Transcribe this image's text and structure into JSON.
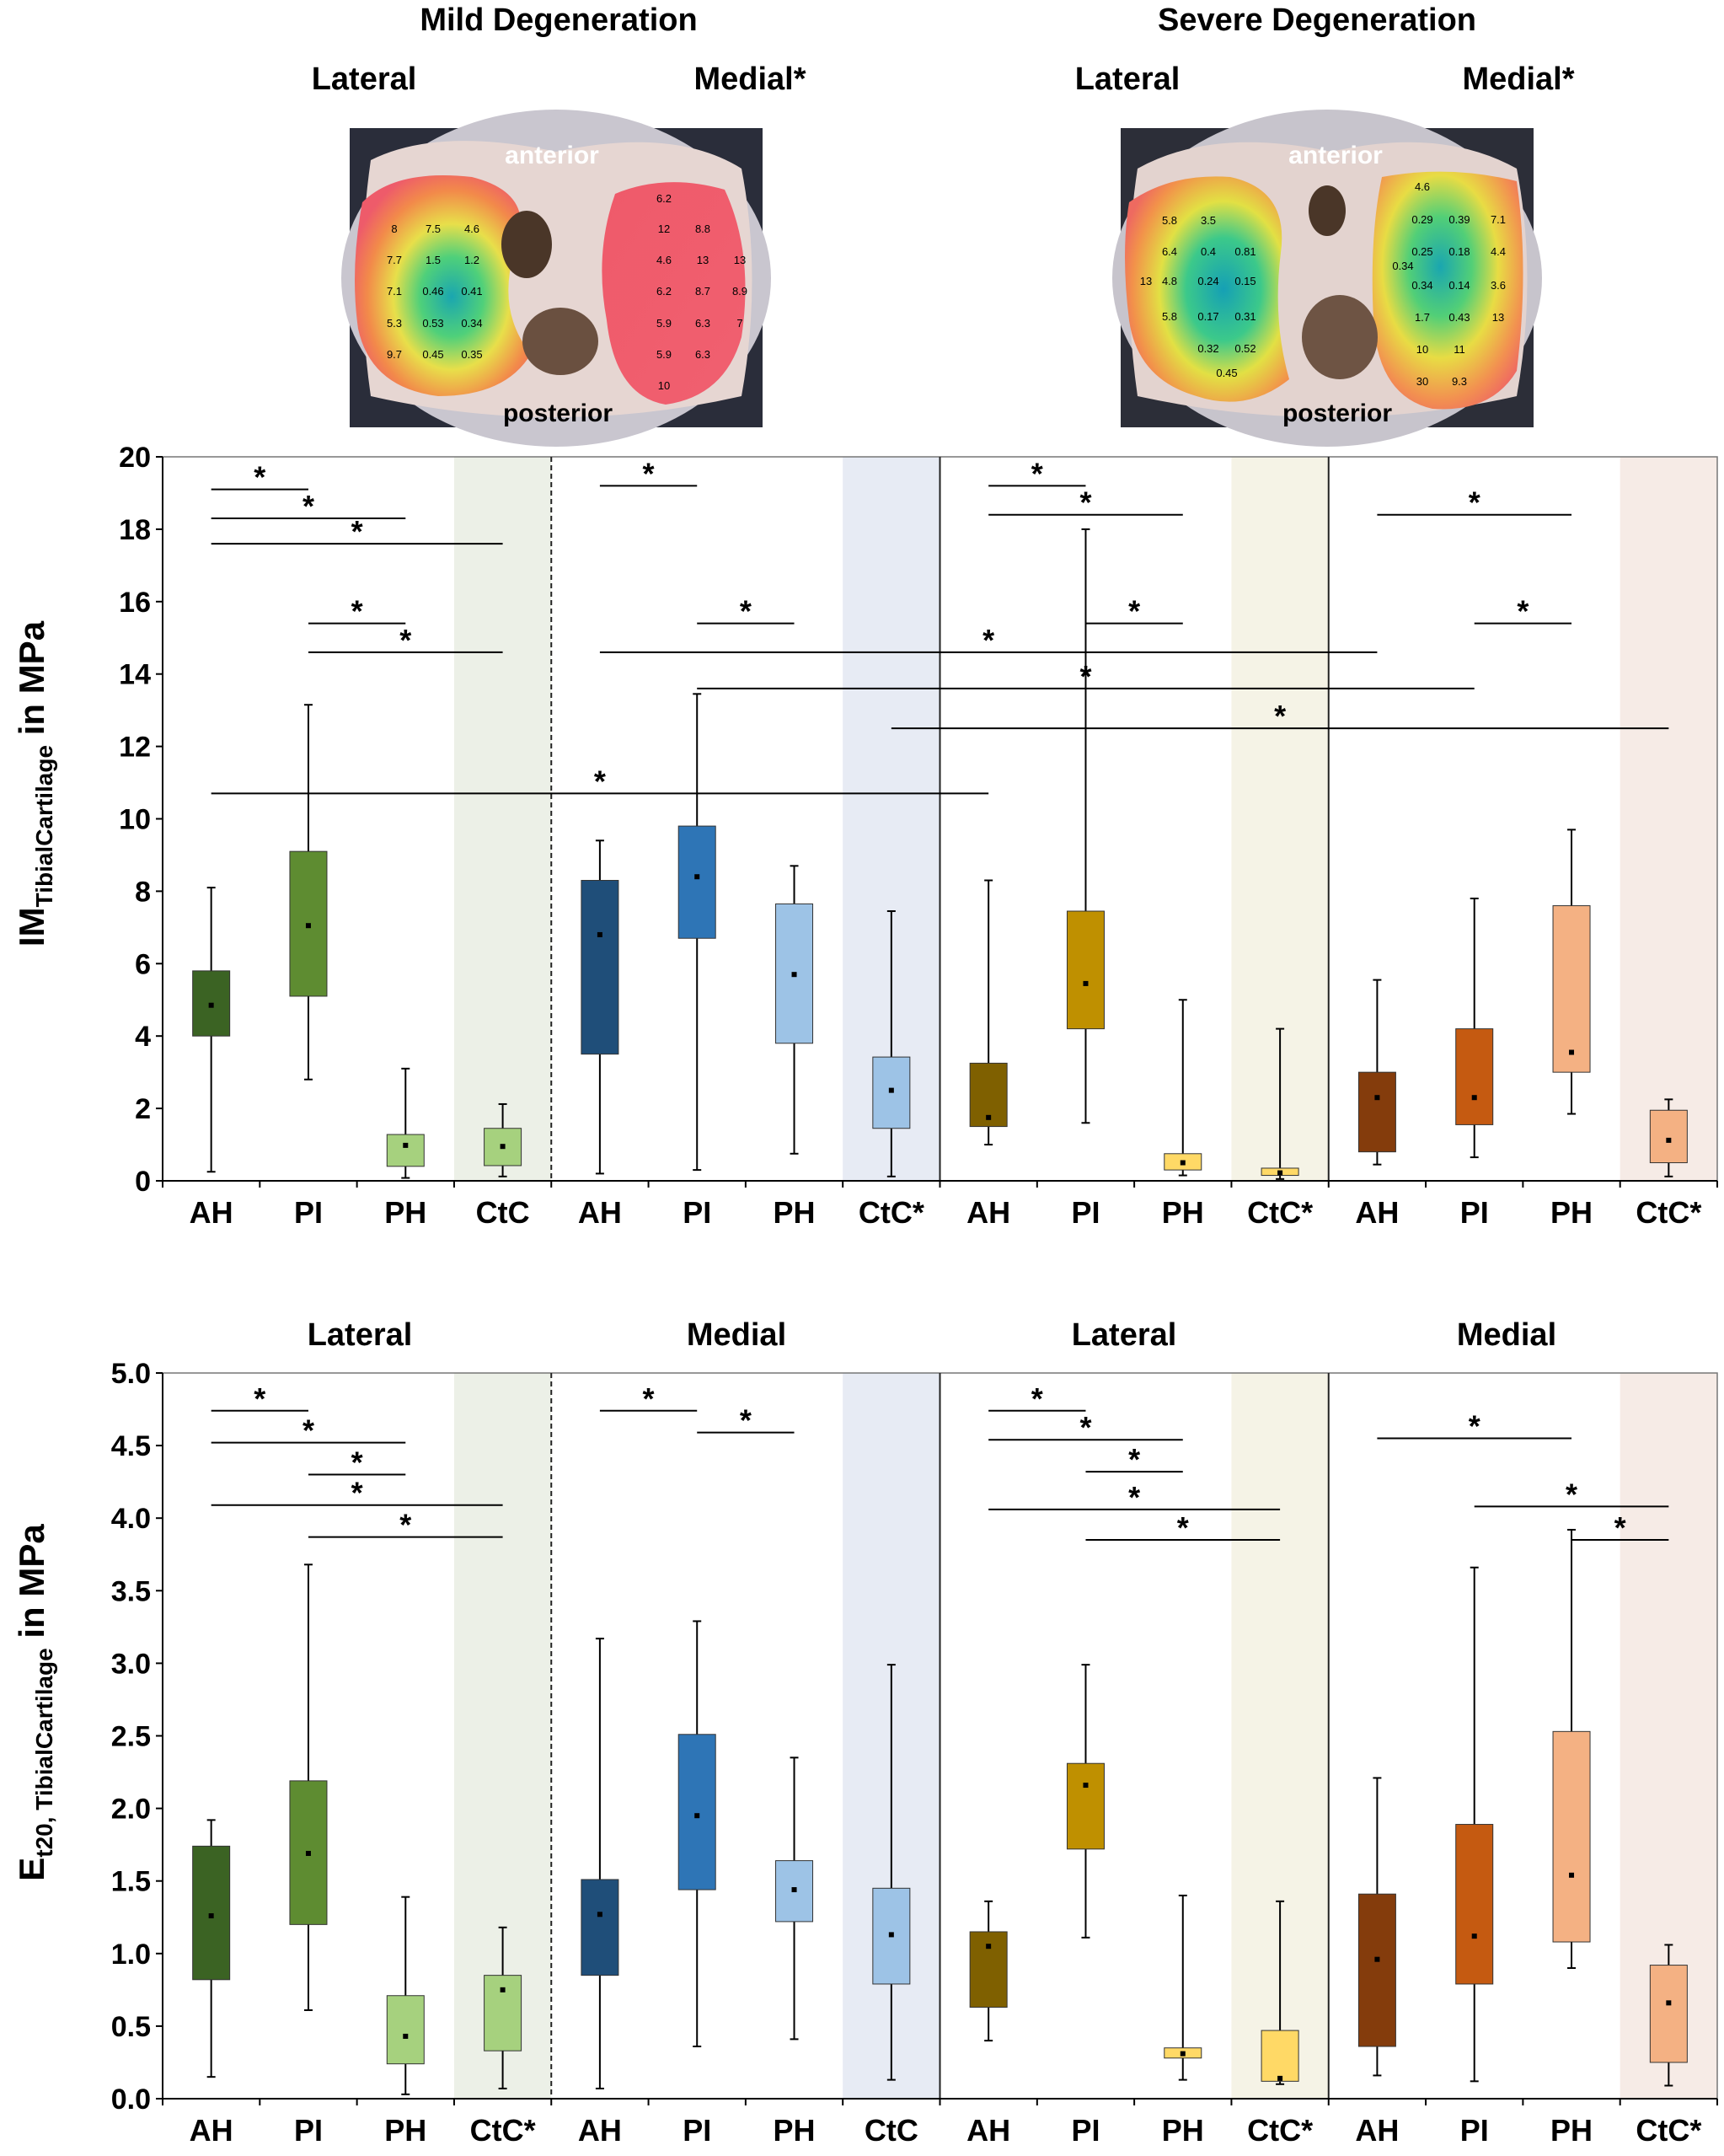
{
  "figure": {
    "headings": {
      "mild": "Mild Degeneration",
      "severe": "Severe Degeneration",
      "lateral": "Lateral",
      "medial_star": "Medial*",
      "medial": "Medial"
    },
    "photo_labels": {
      "anterior": "anterior",
      "posterior": "posterior"
    },
    "photo_mild_values": [
      "8",
      "7.5",
      "4.6",
      "7.7",
      "1.5",
      "1.2",
      "7.1",
      "0.46",
      "0.41",
      "5.3",
      "0.53",
      "0.34",
      "9.7",
      "0.45",
      "0.35",
      "6.2",
      "12",
      "8.8",
      "4.6",
      "13",
      "13",
      "6.2",
      "8.7",
      "8.9",
      "5.9",
      "6.3",
      "7",
      "5.9",
      "6.3",
      "10"
    ],
    "photo_severe_values": [
      "5.8",
      "3.5",
      "6.4",
      "0.4",
      "0.81",
      "13",
      "4.8",
      "0.24",
      "0.15",
      "5.8",
      "0.17",
      "0.31",
      "0.32",
      "0.52",
      "0.45",
      "4.6",
      "0.29",
      "0.39",
      "7.1",
      "0.25",
      "0.18",
      "4.4",
      "0.34",
      "0.34",
      "0.14",
      "3.6",
      "1.7",
      "0.43",
      "13",
      "10",
      "11",
      "30",
      "9.3"
    ],
    "colors": {
      "mild_lateral": [
        "#3b6323",
        "#5e8c31",
        "#a6d17e"
      ],
      "mild_medial": [
        "#1f4e79",
        "#2e75b6",
        "#9dc3e6"
      ],
      "severe_lateral": [
        "#7f6000",
        "#bf9000",
        "#ffd966"
      ],
      "severe_medial": [
        "#843c0c",
        "#c55a11",
        "#f4b183"
      ],
      "shade": [
        "#ecf0e7",
        "#e7ebf4",
        "#f5f3e6",
        "#f6ebe6"
      ]
    }
  },
  "chart_data": [
    {
      "type": "boxplot",
      "ylabel": "IM",
      "ylabel_sub": "TibialCartilage",
      "ylabel_unit": " in MPa",
      "ylim": [
        0,
        20
      ],
      "ytick_labels": [
        "0",
        "2",
        "4",
        "6",
        "8",
        "10",
        "12",
        "14",
        "16",
        "18",
        "20"
      ],
      "categories": [
        "AH",
        "PI",
        "PH",
        "CtC",
        "AH",
        "PI",
        "PH",
        "CtC*",
        "AH",
        "PI",
        "PH",
        "CtC*",
        "AH",
        "PI",
        "PH",
        "CtC*"
      ],
      "groups": [
        {
          "name": "Mild Degeneration Lateral",
          "start": 0,
          "end": 3
        },
        {
          "name": "Mild Degeneration Medial",
          "start": 4,
          "end": 7
        },
        {
          "name": "Severe Degeneration Lateral",
          "start": 8,
          "end": 11
        },
        {
          "name": "Severe Degeneration Medial",
          "start": 12,
          "end": 15
        }
      ],
      "boxes": [
        {
          "min": 0.25,
          "q1": 4.0,
          "median": 4.85,
          "q3": 5.8,
          "max": 8.1
        },
        {
          "min": 2.8,
          "q1": 5.1,
          "median": 7.05,
          "q3": 9.1,
          "max": 13.15
        },
        {
          "min": 0.08,
          "q1": 0.4,
          "median": 0.98,
          "q3": 1.28,
          "max": 3.1
        },
        {
          "min": 0.12,
          "q1": 0.42,
          "median": 0.95,
          "q3": 1.45,
          "max": 2.12
        },
        {
          "min": 0.2,
          "q1": 3.5,
          "median": 6.8,
          "q3": 8.3,
          "max": 9.4
        },
        {
          "min": 0.3,
          "q1": 6.7,
          "median": 8.4,
          "q3": 9.8,
          "max": 13.45
        },
        {
          "min": 0.75,
          "q1": 3.8,
          "median": 5.7,
          "q3": 7.65,
          "max": 8.7
        },
        {
          "min": 0.12,
          "q1": 1.45,
          "median": 2.5,
          "q3": 3.42,
          "max": 7.45
        },
        {
          "min": 1.0,
          "q1": 1.5,
          "median": 1.75,
          "q3": 3.25,
          "max": 8.3
        },
        {
          "min": 1.6,
          "q1": 4.2,
          "median": 5.45,
          "q3": 7.45,
          "max": 18.0
        },
        {
          "min": 0.15,
          "q1": 0.3,
          "median": 0.5,
          "q3": 0.75,
          "max": 5.0
        },
        {
          "min": 0.05,
          "q1": 0.15,
          "median": 0.22,
          "q3": 0.35,
          "max": 4.2
        },
        {
          "min": 0.45,
          "q1": 0.8,
          "median": 2.3,
          "q3": 3.0,
          "max": 5.55
        },
        {
          "min": 0.65,
          "q1": 1.55,
          "median": 2.3,
          "q3": 4.2,
          "max": 7.8
        },
        {
          "min": 1.85,
          "q1": 3.0,
          "median": 3.55,
          "q3": 7.6,
          "max": 9.7
        },
        {
          "min": 0.12,
          "q1": 0.5,
          "median": 1.12,
          "q3": 1.95,
          "max": 2.25
        }
      ],
      "significance": [
        {
          "from": 0,
          "to": 1,
          "y": 19.1
        },
        {
          "from": 0,
          "to": 2,
          "y": 18.3
        },
        {
          "from": 0,
          "to": 3,
          "y": 17.6
        },
        {
          "from": 1,
          "to": 2,
          "y": 15.4
        },
        {
          "from": 1,
          "to": 3,
          "y": 14.6
        },
        {
          "from": 4,
          "to": 5,
          "y": 19.2
        },
        {
          "from": 5,
          "to": 6,
          "y": 15.4
        },
        {
          "from": 4,
          "to": 12,
          "y": 14.6
        },
        {
          "from": 5,
          "to": 13,
          "y": 13.6
        },
        {
          "from": 7,
          "to": 15,
          "y": 12.5
        },
        {
          "from": 0,
          "to": 8,
          "y": 10.7
        },
        {
          "from": 8,
          "to": 9,
          "y": 19.2
        },
        {
          "from": 8,
          "to": 10,
          "y": 18.4
        },
        {
          "from": 9,
          "to": 10,
          "y": 15.4
        },
        {
          "from": 12,
          "to": 14,
          "y": 18.4
        },
        {
          "from": 13,
          "to": 14,
          "y": 15.4
        }
      ]
    },
    {
      "type": "boxplot",
      "ylabel": "E",
      "ylabel_sub": "t20, TibialCartilage",
      "ylabel_unit": " in MPa",
      "ylim": [
        0,
        5
      ],
      "ytick_labels": [
        "0.0",
        "0.5",
        "1.0",
        "1.5",
        "2.0",
        "2.5",
        "3.0",
        "3.5",
        "4.0",
        "4.5",
        "5.0"
      ],
      "group_titles": [
        "Lateral",
        "Medial",
        "Lateral",
        "Medial"
      ],
      "categories": [
        "AH",
        "PI",
        "PH",
        "CtC*",
        "AH",
        "PI",
        "PH",
        "CtC",
        "AH",
        "PI",
        "PH",
        "CtC*",
        "AH",
        "PI",
        "PH",
        "CtC*"
      ],
      "boxes": [
        {
          "min": 0.15,
          "q1": 0.82,
          "median": 1.26,
          "q3": 1.74,
          "max": 1.92
        },
        {
          "min": 0.61,
          "q1": 1.2,
          "median": 1.69,
          "q3": 2.19,
          "max": 3.68
        },
        {
          "min": 0.03,
          "q1": 0.24,
          "median": 0.43,
          "q3": 0.71,
          "max": 1.39
        },
        {
          "min": 0.07,
          "q1": 0.33,
          "median": 0.75,
          "q3": 0.85,
          "max": 1.18
        },
        {
          "min": 0.07,
          "q1": 0.85,
          "median": 1.27,
          "q3": 1.51,
          "max": 3.17
        },
        {
          "min": 0.36,
          "q1": 1.44,
          "median": 1.95,
          "q3": 2.51,
          "max": 3.29
        },
        {
          "min": 0.41,
          "q1": 1.22,
          "median": 1.44,
          "q3": 1.64,
          "max": 2.35
        },
        {
          "min": 0.13,
          "q1": 0.79,
          "median": 1.13,
          "q3": 1.45,
          "max": 2.99
        },
        {
          "min": 0.4,
          "q1": 0.63,
          "median": 1.05,
          "q3": 1.15,
          "max": 1.36
        },
        {
          "min": 1.11,
          "q1": 1.72,
          "median": 2.16,
          "q3": 2.31,
          "max": 2.99
        },
        {
          "min": 0.13,
          "q1": 0.28,
          "median": 0.31,
          "q3": 0.35,
          "max": 1.4
        },
        {
          "min": 0.1,
          "q1": 0.12,
          "median": 0.14,
          "q3": 0.47,
          "max": 1.36
        },
        {
          "min": 0.16,
          "q1": 0.36,
          "median": 0.96,
          "q3": 1.41,
          "max": 2.21
        },
        {
          "min": 0.12,
          "q1": 0.79,
          "median": 1.12,
          "q3": 1.89,
          "max": 3.66
        },
        {
          "min": 0.9,
          "q1": 1.08,
          "median": 1.54,
          "q3": 2.53,
          "max": 3.92
        },
        {
          "min": 0.09,
          "q1": 0.25,
          "median": 0.66,
          "q3": 0.92,
          "max": 1.06
        }
      ],
      "significance": [
        {
          "from": 0,
          "to": 1,
          "y": 4.74
        },
        {
          "from": 0,
          "to": 2,
          "y": 4.52
        },
        {
          "from": 1,
          "to": 2,
          "y": 4.3
        },
        {
          "from": 0,
          "to": 3,
          "y": 4.09
        },
        {
          "from": 1,
          "to": 3,
          "y": 3.87
        },
        {
          "from": 4,
          "to": 5,
          "y": 4.74
        },
        {
          "from": 5,
          "to": 6,
          "y": 4.59
        },
        {
          "from": 8,
          "to": 9,
          "y": 4.74
        },
        {
          "from": 8,
          "to": 10,
          "y": 4.54
        },
        {
          "from": 9,
          "to": 10,
          "y": 4.32
        },
        {
          "from": 8,
          "to": 11,
          "y": 4.06
        },
        {
          "from": 9,
          "to": 11,
          "y": 3.85
        },
        {
          "from": 12,
          "to": 14,
          "y": 4.55
        },
        {
          "from": 13,
          "to": 15,
          "y": 4.08
        },
        {
          "from": 14,
          "to": 15,
          "y": 3.85
        }
      ]
    }
  ]
}
